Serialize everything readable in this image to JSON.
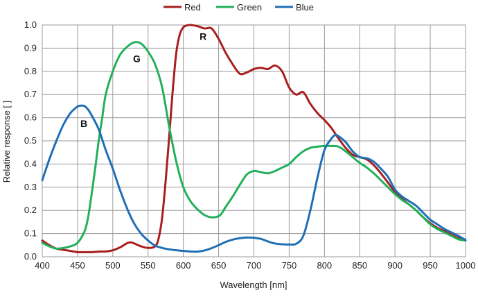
{
  "chart_data": {
    "type": "line",
    "title": "",
    "xlabel": "Wavelength [nm]",
    "ylabel": "Relative response [ ]",
    "xlim": [
      400,
      1000
    ],
    "ylim": [
      0,
      1.0
    ],
    "xticks": [
      400,
      450,
      500,
      550,
      600,
      650,
      700,
      750,
      800,
      850,
      900,
      950,
      1000
    ],
    "yticks": [
      "0.0",
      "0.1",
      "0.2",
      "0.3",
      "0.4",
      "0.5",
      "0.6",
      "0.7",
      "0.8",
      "0.9",
      "1.0"
    ],
    "grid": true,
    "legend": "top-center",
    "series": [
      {
        "name": "Red",
        "color": "#a81e1e",
        "x": [
          400,
          410,
          420,
          430,
          440,
          450,
          460,
          470,
          480,
          490,
          500,
          510,
          520,
          525,
          530,
          540,
          550,
          560,
          565,
          570,
          575,
          580,
          585,
          590,
          595,
          600,
          605,
          610,
          620,
          630,
          640,
          650,
          660,
          670,
          680,
          690,
          700,
          710,
          720,
          730,
          740,
          750,
          760,
          770,
          780,
          790,
          800,
          810,
          820,
          830,
          840,
          850,
          860,
          870,
          880,
          890,
          900,
          910,
          920,
          930,
          940,
          950,
          960,
          970,
          980,
          990,
          1000
        ],
        "y": [
          0.07,
          0.05,
          0.035,
          0.03,
          0.025,
          0.02,
          0.02,
          0.02,
          0.022,
          0.023,
          0.028,
          0.04,
          0.058,
          0.062,
          0.058,
          0.045,
          0.038,
          0.045,
          0.08,
          0.17,
          0.33,
          0.52,
          0.72,
          0.88,
          0.96,
          0.99,
          0.998,
          1.0,
          0.995,
          0.985,
          0.985,
          0.94,
          0.88,
          0.83,
          0.79,
          0.795,
          0.81,
          0.815,
          0.81,
          0.825,
          0.8,
          0.73,
          0.7,
          0.71,
          0.66,
          0.62,
          0.59,
          0.555,
          0.51,
          0.47,
          0.44,
          0.43,
          0.42,
          0.395,
          0.36,
          0.32,
          0.28,
          0.25,
          0.225,
          0.2,
          0.17,
          0.145,
          0.125,
          0.11,
          0.095,
          0.08,
          0.07
        ]
      },
      {
        "name": "Green",
        "color": "#22b05a",
        "x": [
          400,
          410,
          420,
          430,
          440,
          450,
          460,
          465,
          470,
          475,
          480,
          485,
          490,
          500,
          510,
          520,
          530,
          540,
          550,
          560,
          570,
          580,
          590,
          600,
          610,
          620,
          630,
          640,
          650,
          655,
          660,
          670,
          680,
          690,
          700,
          710,
          720,
          730,
          740,
          750,
          760,
          770,
          780,
          790,
          800,
          810,
          820,
          830,
          840,
          850,
          860,
          870,
          880,
          890,
          900,
          910,
          920,
          930,
          940,
          950,
          960,
          970,
          980,
          990,
          1000
        ],
        "y": [
          0.06,
          0.045,
          0.035,
          0.038,
          0.045,
          0.06,
          0.11,
          0.17,
          0.27,
          0.38,
          0.5,
          0.6,
          0.7,
          0.8,
          0.87,
          0.905,
          0.925,
          0.92,
          0.885,
          0.83,
          0.73,
          0.56,
          0.41,
          0.3,
          0.24,
          0.205,
          0.18,
          0.17,
          0.175,
          0.19,
          0.215,
          0.26,
          0.31,
          0.355,
          0.37,
          0.365,
          0.36,
          0.37,
          0.385,
          0.4,
          0.43,
          0.455,
          0.47,
          0.475,
          0.478,
          0.478,
          0.475,
          0.455,
          0.43,
          0.405,
          0.385,
          0.36,
          0.33,
          0.3,
          0.27,
          0.245,
          0.225,
          0.2,
          0.17,
          0.14,
          0.12,
          0.105,
          0.09,
          0.075,
          0.07
        ]
      },
      {
        "name": "Blue",
        "color": "#1f6fb6",
        "x": [
          400,
          410,
          420,
          430,
          440,
          450,
          455,
          460,
          465,
          470,
          480,
          490,
          500,
          510,
          520,
          530,
          540,
          550,
          560,
          570,
          580,
          590,
          600,
          610,
          620,
          630,
          640,
          650,
          660,
          670,
          680,
          690,
          700,
          710,
          720,
          730,
          740,
          750,
          760,
          770,
          780,
          790,
          800,
          810,
          815,
          820,
          830,
          840,
          850,
          860,
          870,
          880,
          890,
          900,
          910,
          920,
          930,
          940,
          950,
          960,
          970,
          980,
          990,
          1000
        ],
        "y": [
          0.33,
          0.42,
          0.5,
          0.57,
          0.62,
          0.648,
          0.652,
          0.65,
          0.635,
          0.61,
          0.55,
          0.46,
          0.38,
          0.29,
          0.21,
          0.145,
          0.1,
          0.07,
          0.048,
          0.038,
          0.032,
          0.028,
          0.025,
          0.023,
          0.022,
          0.027,
          0.037,
          0.05,
          0.064,
          0.074,
          0.08,
          0.083,
          0.082,
          0.077,
          0.066,
          0.057,
          0.054,
          0.053,
          0.056,
          0.09,
          0.2,
          0.34,
          0.46,
          0.51,
          0.525,
          0.52,
          0.495,
          0.455,
          0.43,
          0.425,
          0.41,
          0.38,
          0.345,
          0.29,
          0.26,
          0.24,
          0.22,
          0.19,
          0.16,
          0.14,
          0.12,
          0.105,
          0.09,
          0.072
        ]
      }
    ],
    "annotations": [
      {
        "text": "R",
        "x": 628,
        "y": 0.935
      },
      {
        "text": "G",
        "x": 534,
        "y": 0.84
      },
      {
        "text": "B",
        "x": 459,
        "y": 0.56
      }
    ]
  }
}
